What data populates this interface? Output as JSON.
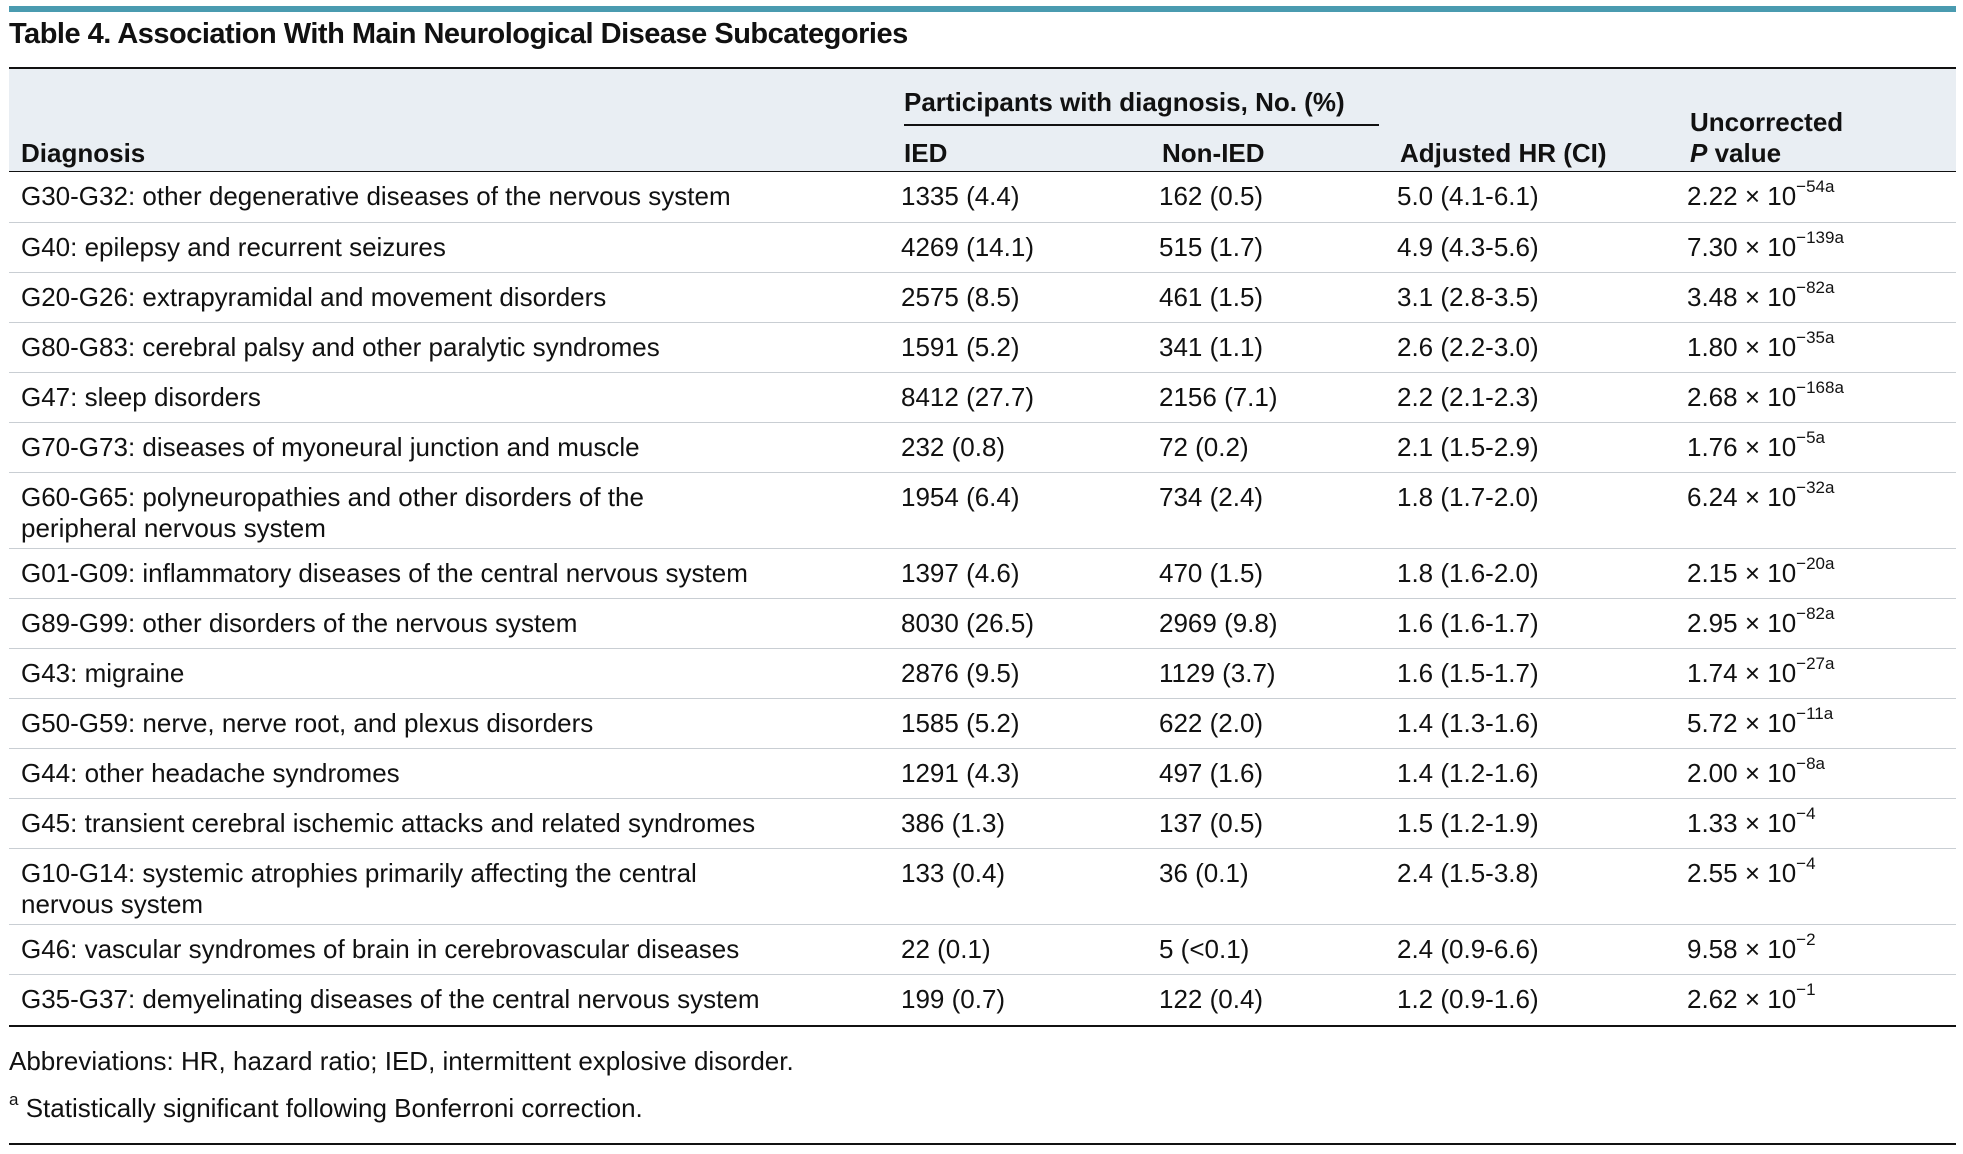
{
  "table_title": "Table 4. Association With Main Neurological Disease Subcategories",
  "header": {
    "diagnosis": "Diagnosis",
    "group_label": "Participants with diagnosis, No. (%)",
    "ied": "IED",
    "non_ied": "Non-IED",
    "hr": "Adjusted HR (CI)",
    "p_line1": "Uncorrected",
    "p_italic": "P",
    "p_line2": " value"
  },
  "rows": [
    {
      "diagnosis": "G30-G32: other degenerative diseases of the nervous system",
      "ied": "1335 (4.4)",
      "non_ied": "162 (0.5)",
      "hr": "5.0 (4.1-6.1)",
      "p_base": "2.22 × 10",
      "p_exp": "−54a"
    },
    {
      "diagnosis": "G40: epilepsy and recurrent seizures",
      "ied": "4269 (14.1)",
      "non_ied": "515 (1.7)",
      "hr": "4.9 (4.3-5.6)",
      "p_base": "7.30 × 10",
      "p_exp": "−139a"
    },
    {
      "diagnosis": "G20-G26: extrapyramidal and movement disorders",
      "ied": "2575 (8.5)",
      "non_ied": "461 (1.5)",
      "hr": "3.1 (2.8-3.5)",
      "p_base": "3.48 × 10",
      "p_exp": "−82a"
    },
    {
      "diagnosis": "G80-G83: cerebral palsy and other paralytic syndromes",
      "ied": "1591 (5.2)",
      "non_ied": "341 (1.1)",
      "hr": "2.6 (2.2-3.0)",
      "p_base": "1.80 × 10",
      "p_exp": "−35a"
    },
    {
      "diagnosis": "G47: sleep disorders",
      "ied": "8412 (27.7)",
      "non_ied": "2156 (7.1)",
      "hr": "2.2 (2.1-2.3)",
      "p_base": "2.68 × 10",
      "p_exp": "−168a"
    },
    {
      "diagnosis": "G70-G73: diseases of myoneural junction and muscle",
      "ied": "232 (0.8)",
      "non_ied": "72 (0.2)",
      "hr": "2.1 (1.5-2.9)",
      "p_base": "1.76 × 10",
      "p_exp": "−5a"
    },
    {
      "diagnosis": "G60-G65: polyneuropathies and other disorders of the",
      "diagnosis_line2": "peripheral nervous system",
      "ied": "1954 (6.4)",
      "non_ied": "734 (2.4)",
      "hr": "1.8 (1.7-2.0)",
      "p_base": "6.24 × 10",
      "p_exp": "−32a"
    },
    {
      "diagnosis": "G01-G09: inflammatory diseases of the central nervous system",
      "ied": "1397 (4.6)",
      "non_ied": "470 (1.5)",
      "hr": "1.8 (1.6-2.0)",
      "p_base": "2.15 × 10",
      "p_exp": "−20a"
    },
    {
      "diagnosis": "G89-G99: other disorders of the nervous system",
      "ied": "8030 (26.5)",
      "non_ied": "2969 (9.8)",
      "hr": "1.6 (1.6-1.7)",
      "p_base": "2.95 × 10",
      "p_exp": "−82a"
    },
    {
      "diagnosis": "G43: migraine",
      "ied": "2876 (9.5)",
      "non_ied": "1129 (3.7)",
      "hr": "1.6 (1.5-1.7)",
      "p_base": "1.74 × 10",
      "p_exp": "−27a"
    },
    {
      "diagnosis": "G50-G59: nerve, nerve root, and plexus disorders",
      "ied": "1585 (5.2)",
      "non_ied": "622 (2.0)",
      "hr": "1.4 (1.3-1.6)",
      "p_base": "5.72 × 10",
      "p_exp": "−11a"
    },
    {
      "diagnosis": "G44: other headache syndromes",
      "ied": "1291 (4.3)",
      "non_ied": "497 (1.6)",
      "hr": "1.4 (1.2-1.6)",
      "p_base": "2.00 × 10",
      "p_exp": "−8a"
    },
    {
      "diagnosis": "G45: transient cerebral ischemic attacks and related syndromes",
      "ied": "386 (1.3)",
      "non_ied": "137 (0.5)",
      "hr": "1.5 (1.2-1.9)",
      "p_base": "1.33 × 10",
      "p_exp": "−4"
    },
    {
      "diagnosis": "G10-G14: systemic atrophies primarily affecting the central",
      "diagnosis_line2": "nervous system",
      "ied": "133 (0.4)",
      "non_ied": "36 (0.1)",
      "hr": "2.4 (1.5-3.8)",
      "p_base": "2.55 × 10",
      "p_exp": "−4"
    },
    {
      "diagnosis": "G46: vascular syndromes of brain in cerebrovascular diseases",
      "ied": "22 (0.1)",
      "non_ied": "5 (<0.1)",
      "hr": "2.4 (0.9-6.6)",
      "p_base": "9.58 × 10",
      "p_exp": "−2"
    },
    {
      "diagnosis": "G35-G37: demyelinating diseases of the central nervous system",
      "ied": "199 (0.7)",
      "non_ied": "122 (0.4)",
      "hr": "1.2 (0.9-1.6)",
      "p_base": "2.62 × 10",
      "p_exp": "−1"
    }
  ],
  "footnotes": {
    "abbreviations": "Abbreviations: HR, hazard ratio; IED, intermittent explosive disorder.",
    "a_marker": "a",
    "a_text": " Statistically significant following Bonferroni correction."
  }
}
